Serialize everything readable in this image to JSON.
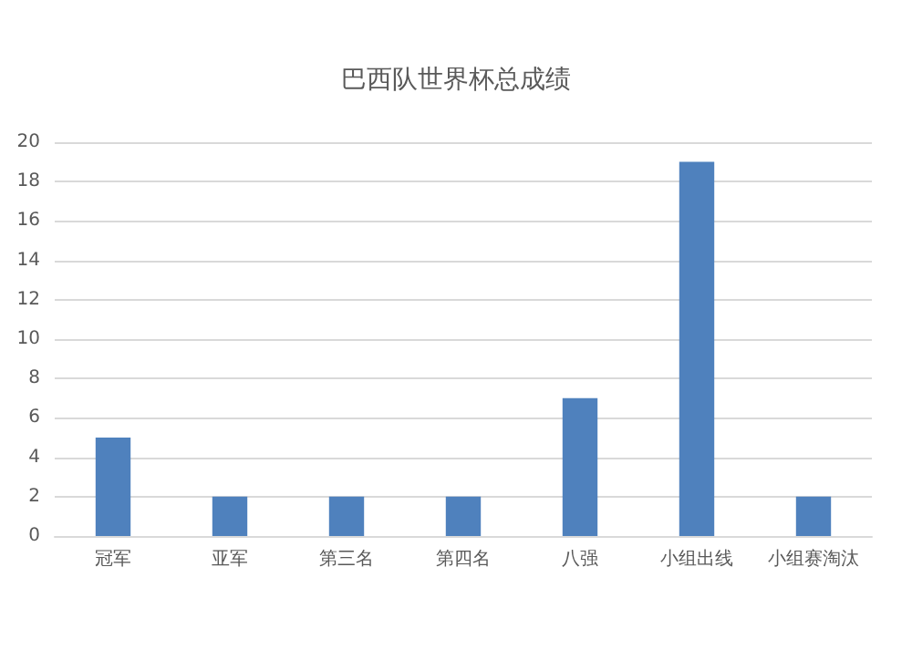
{
  "chart_data": {
    "type": "bar",
    "title": "巴西队世界杯总成绩",
    "categories": [
      "冠军",
      "亚军",
      "第三名",
      "第四名",
      "八强",
      "小组出线",
      "小组赛淘汰"
    ],
    "values": [
      5,
      2,
      2,
      2,
      7,
      19,
      2
    ],
    "color": "#4f81bd",
    "ylim": [
      0,
      20
    ],
    "yticks": [
      0,
      2,
      4,
      6,
      8,
      10,
      12,
      14,
      16,
      18,
      20
    ],
    "grid": "y"
  }
}
